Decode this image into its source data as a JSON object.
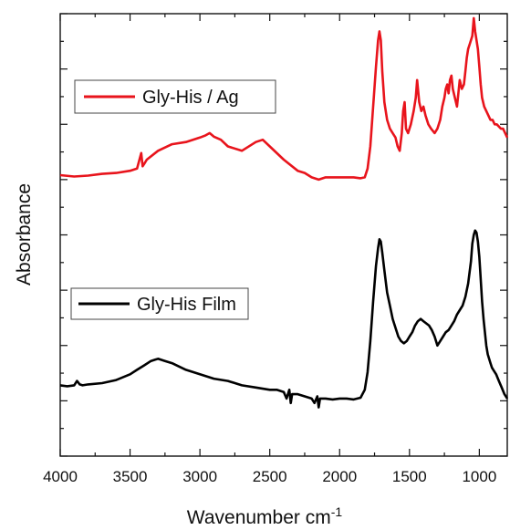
{
  "chart_data": {
    "type": "line",
    "xlabel": "Wavenumber cm",
    "xlabel_superscript": "-1",
    "ylabel": "Absorbance",
    "xlim": [
      4000,
      800
    ],
    "x_reversed": true,
    "y_tick_labels": false,
    "ylim": [
      0,
      10
    ],
    "x_ticks": [
      4000,
      3500,
      3000,
      2500,
      2000,
      1500,
      1000
    ],
    "x_tick_labels": [
      "4000",
      "3500",
      "3000",
      "2500",
      "2000",
      "1500",
      "1000"
    ],
    "grid": false,
    "series": [
      {
        "name": "Gly-His / Ag",
        "color": "#e8141c",
        "x": [
          4000,
          3900,
          3800,
          3700,
          3600,
          3500,
          3450,
          3420,
          3410,
          3400,
          3380,
          3300,
          3200,
          3100,
          3000,
          2960,
          2930,
          2900,
          2850,
          2800,
          2700,
          2600,
          2550,
          2500,
          2400,
          2300,
          2250,
          2200,
          2150,
          2100,
          2000,
          1900,
          1850,
          1820,
          1800,
          1780,
          1760,
          1740,
          1725,
          1715,
          1705,
          1695,
          1680,
          1660,
          1640,
          1620,
          1600,
          1585,
          1570,
          1555,
          1545,
          1535,
          1525,
          1510,
          1490,
          1470,
          1455,
          1445,
          1430,
          1415,
          1400,
          1385,
          1365,
          1345,
          1320,
          1300,
          1280,
          1265,
          1250,
          1240,
          1230,
          1220,
          1210,
          1200,
          1190,
          1175,
          1160,
          1150,
          1140,
          1125,
          1110,
          1100,
          1090,
          1080,
          1070,
          1060,
          1050,
          1040,
          1030,
          1020,
          1010,
          1000,
          990,
          980,
          965,
          950,
          935,
          920,
          905,
          890,
          875,
          860,
          845,
          830,
          815,
          800
        ],
        "y": [
          6.35,
          6.32,
          6.34,
          6.38,
          6.4,
          6.45,
          6.5,
          6.85,
          6.55,
          6.6,
          6.7,
          6.9,
          7.05,
          7.1,
          7.2,
          7.25,
          7.3,
          7.22,
          7.15,
          7.0,
          6.9,
          7.1,
          7.15,
          7.0,
          6.7,
          6.45,
          6.4,
          6.3,
          6.25,
          6.3,
          6.3,
          6.3,
          6.28,
          6.3,
          6.5,
          7.0,
          7.9,
          8.8,
          9.4,
          9.6,
          9.4,
          8.7,
          8.0,
          7.6,
          7.4,
          7.3,
          7.2,
          7.0,
          6.9,
          7.3,
          7.8,
          8.0,
          7.4,
          7.3,
          7.5,
          7.8,
          8.1,
          8.5,
          8.0,
          7.8,
          7.9,
          7.7,
          7.5,
          7.4,
          7.3,
          7.4,
          7.6,
          7.9,
          8.1,
          8.3,
          8.4,
          8.2,
          8.5,
          8.6,
          8.3,
          8.1,
          7.9,
          8.2,
          8.5,
          8.3,
          8.4,
          8.7,
          9.0,
          9.2,
          9.3,
          9.4,
          9.5,
          9.9,
          9.6,
          9.4,
          9.2,
          8.8,
          8.4,
          8.1,
          7.9,
          7.8,
          7.7,
          7.6,
          7.6,
          7.5,
          7.5,
          7.45,
          7.4,
          7.4,
          7.3,
          7.2
        ]
      },
      {
        "name": "Gly-His Film",
        "color": "#000000",
        "x": [
          4000,
          3950,
          3900,
          3880,
          3860,
          3840,
          3800,
          3700,
          3600,
          3500,
          3450,
          3400,
          3350,
          3320,
          3300,
          3250,
          3200,
          3100,
          3000,
          2900,
          2800,
          2700,
          2600,
          2500,
          2450,
          2400,
          2380,
          2360,
          2350,
          2340,
          2300,
          2250,
          2200,
          2180,
          2160,
          2150,
          2140,
          2100,
          2050,
          2000,
          1950,
          1900,
          1850,
          1820,
          1800,
          1780,
          1760,
          1740,
          1725,
          1715,
          1705,
          1695,
          1680,
          1660,
          1640,
          1620,
          1600,
          1580,
          1560,
          1540,
          1520,
          1500,
          1480,
          1460,
          1440,
          1420,
          1400,
          1380,
          1360,
          1340,
          1320,
          1300,
          1280,
          1260,
          1240,
          1220,
          1200,
          1180,
          1160,
          1140,
          1120,
          1100,
          1080,
          1060,
          1050,
          1040,
          1030,
          1020,
          1010,
          1000,
          990,
          980,
          970,
          960,
          950,
          940,
          930,
          920,
          910,
          900,
          880,
          860,
          840,
          820,
          800
        ],
        "y": [
          1.6,
          1.58,
          1.6,
          1.7,
          1.62,
          1.6,
          1.62,
          1.65,
          1.72,
          1.85,
          1.95,
          2.05,
          2.15,
          2.18,
          2.2,
          2.15,
          2.1,
          1.95,
          1.85,
          1.75,
          1.7,
          1.6,
          1.55,
          1.5,
          1.5,
          1.45,
          1.3,
          1.5,
          1.2,
          1.4,
          1.4,
          1.35,
          1.3,
          1.2,
          1.35,
          1.1,
          1.3,
          1.3,
          1.28,
          1.3,
          1.3,
          1.28,
          1.32,
          1.5,
          1.9,
          2.6,
          3.5,
          4.3,
          4.7,
          4.9,
          4.85,
          4.6,
          4.2,
          3.7,
          3.4,
          3.1,
          2.9,
          2.7,
          2.6,
          2.55,
          2.6,
          2.7,
          2.8,
          2.95,
          3.05,
          3.1,
          3.05,
          3.0,
          2.95,
          2.85,
          2.7,
          2.5,
          2.6,
          2.7,
          2.8,
          2.85,
          2.95,
          3.05,
          3.2,
          3.3,
          3.4,
          3.6,
          3.9,
          4.4,
          4.8,
          5.0,
          5.1,
          5.05,
          4.85,
          4.5,
          4.0,
          3.5,
          3.1,
          2.8,
          2.5,
          2.3,
          2.2,
          2.1,
          2.0,
          1.95,
          1.85,
          1.7,
          1.55,
          1.4,
          1.3
        ]
      }
    ]
  }
}
